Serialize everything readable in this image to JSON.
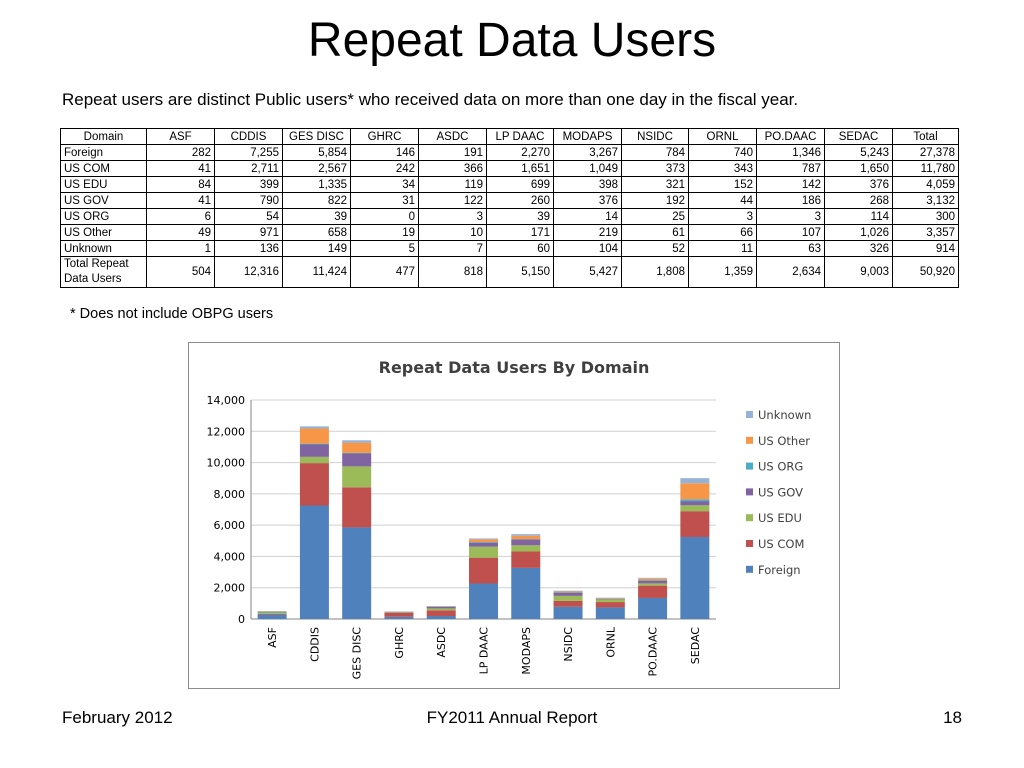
{
  "slide_title": "Repeat Data Users",
  "subtitle": "Repeat users are distinct Public users* who received data on more than one day in the fiscal year.",
  "table": {
    "corner_header": "Domain",
    "columns": [
      "ASF",
      "CDDIS",
      "GES DISC",
      "GHRC",
      "ASDC",
      "LP DAAC",
      "MODAPS",
      "NSIDC",
      "ORNL",
      "PO.DAAC",
      "SEDAC",
      "Total"
    ],
    "rows": [
      {
        "label": "Foreign",
        "cells": [
          "282",
          "7,255",
          "5,854",
          "146",
          "191",
          "2,270",
          "3,267",
          "784",
          "740",
          "1,346",
          "5,243",
          "27,378"
        ]
      },
      {
        "label": "US COM",
        "cells": [
          "41",
          "2,711",
          "2,567",
          "242",
          "366",
          "1,651",
          "1,049",
          "373",
          "343",
          "787",
          "1,650",
          "11,780"
        ]
      },
      {
        "label": "US EDU",
        "cells": [
          "84",
          "399",
          "1,335",
          "34",
          "119",
          "699",
          "398",
          "321",
          "152",
          "142",
          "376",
          "4,059"
        ]
      },
      {
        "label": "US GOV",
        "cells": [
          "41",
          "790",
          "822",
          "31",
          "122",
          "260",
          "376",
          "192",
          "44",
          "186",
          "268",
          "3,132"
        ]
      },
      {
        "label": "US ORG",
        "cells": [
          "6",
          "54",
          "39",
          "0",
          "3",
          "39",
          "14",
          "25",
          "3",
          "3",
          "114",
          "300"
        ]
      },
      {
        "label": "US Other",
        "cells": [
          "49",
          "971",
          "658",
          "19",
          "10",
          "171",
          "219",
          "61",
          "66",
          "107",
          "1,026",
          "3,357"
        ]
      },
      {
        "label": "Unknown",
        "cells": [
          "1",
          "136",
          "149",
          "5",
          "7",
          "60",
          "104",
          "52",
          "11",
          "63",
          "326",
          "914"
        ]
      },
      {
        "label": "Total Repeat Data Users",
        "cells": [
          "504",
          "12,316",
          "11,424",
          "477",
          "818",
          "5,150",
          "5,427",
          "1,808",
          "1,359",
          "2,634",
          "9,003",
          "50,920"
        ],
        "is_total": true
      }
    ]
  },
  "footnote": "* Does not include OBPG users",
  "chart_data": {
    "type": "bar",
    "stacked": true,
    "title": "Repeat Data Users By Domain",
    "categories": [
      "ASF",
      "CDDIS",
      "GES DISC",
      "GHRC",
      "ASDC",
      "LP DAAC",
      "MODAPS",
      "NSIDC",
      "ORNL",
      "PO.DAAC",
      "SEDAC"
    ],
    "series": [
      {
        "name": "Foreign",
        "color": "#4F81BD",
        "values": [
          282,
          7255,
          5854,
          146,
          191,
          2270,
          3267,
          784,
          740,
          1346,
          5243
        ]
      },
      {
        "name": "US COM",
        "color": "#C0504D",
        "values": [
          41,
          2711,
          2567,
          242,
          366,
          1651,
          1049,
          373,
          343,
          787,
          1650
        ]
      },
      {
        "name": "US EDU",
        "color": "#9BBB59",
        "values": [
          84,
          399,
          1335,
          34,
          119,
          699,
          398,
          321,
          152,
          142,
          376
        ]
      },
      {
        "name": "US GOV",
        "color": "#8064A2",
        "values": [
          41,
          790,
          822,
          31,
          122,
          260,
          376,
          192,
          44,
          186,
          268
        ]
      },
      {
        "name": "US ORG",
        "color": "#4BACC6",
        "values": [
          6,
          54,
          39,
          0,
          3,
          39,
          14,
          25,
          3,
          3,
          114
        ]
      },
      {
        "name": "US Other",
        "color": "#F79646",
        "values": [
          49,
          971,
          658,
          19,
          10,
          171,
          219,
          61,
          66,
          107,
          1026
        ]
      },
      {
        "name": "Unknown",
        "color": "#95B3D7",
        "values": [
          1,
          136,
          149,
          5,
          7,
          60,
          104,
          52,
          11,
          63,
          326
        ]
      }
    ],
    "ylim": [
      0,
      14000
    ],
    "yticks": [
      0,
      2000,
      4000,
      6000,
      8000,
      10000,
      12000,
      14000
    ],
    "ytick_labels": [
      "0",
      "2,000",
      "4,000",
      "6,000",
      "8,000",
      "10,000",
      "12,000",
      "14,000"
    ],
    "grid": true,
    "legend_position": "right"
  },
  "footer": {
    "left": "February 2012",
    "center": "FY2011 Annual Report",
    "right": "18"
  }
}
